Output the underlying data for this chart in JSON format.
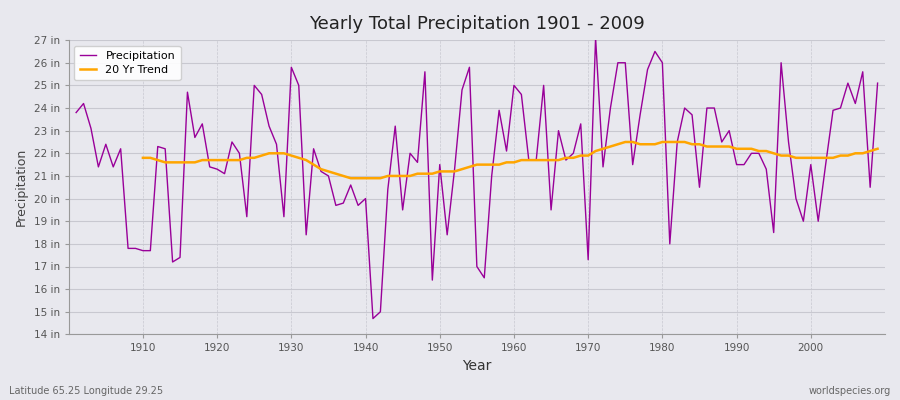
{
  "title": "Yearly Total Precipitation 1901 - 2009",
  "xlabel": "Year",
  "ylabel": "Precipitation",
  "footnote_left": "Latitude 65.25 Longitude 29.25",
  "footnote_right": "worldspecies.org",
  "legend_precipitation": "Precipitation",
  "legend_trend": "20 Yr Trend",
  "precip_color": "#990099",
  "trend_color": "#FFA500",
  "background_color": "#e8e8ee",
  "ylim": [
    14,
    27
  ],
  "yticks": [
    14,
    15,
    16,
    17,
    18,
    19,
    20,
    21,
    22,
    23,
    24,
    25,
    26,
    27
  ],
  "years": [
    1901,
    1902,
    1903,
    1904,
    1905,
    1906,
    1907,
    1908,
    1909,
    1910,
    1911,
    1912,
    1913,
    1914,
    1915,
    1916,
    1917,
    1918,
    1919,
    1920,
    1921,
    1922,
    1923,
    1924,
    1925,
    1926,
    1927,
    1928,
    1929,
    1930,
    1931,
    1932,
    1933,
    1934,
    1935,
    1936,
    1937,
    1938,
    1939,
    1940,
    1941,
    1942,
    1943,
    1944,
    1945,
    1946,
    1947,
    1948,
    1949,
    1950,
    1951,
    1952,
    1953,
    1954,
    1955,
    1956,
    1957,
    1958,
    1959,
    1960,
    1961,
    1962,
    1963,
    1964,
    1965,
    1966,
    1967,
    1968,
    1969,
    1970,
    1971,
    1972,
    1973,
    1974,
    1975,
    1976,
    1977,
    1978,
    1979,
    1980,
    1981,
    1982,
    1983,
    1984,
    1985,
    1986,
    1987,
    1988,
    1989,
    1990,
    1991,
    1992,
    1993,
    1994,
    1995,
    1996,
    1997,
    1998,
    1999,
    2000,
    2001,
    2002,
    2003,
    2004,
    2005,
    2006,
    2007,
    2008,
    2009
  ],
  "precipitation": [
    23.8,
    24.2,
    23.1,
    21.4,
    22.4,
    21.4,
    22.2,
    17.8,
    17.8,
    17.7,
    17.7,
    22.3,
    22.2,
    17.2,
    17.4,
    24.7,
    22.7,
    23.3,
    21.4,
    21.3,
    21.1,
    22.5,
    22.0,
    19.2,
    25.0,
    24.6,
    23.2,
    22.4,
    19.2,
    25.8,
    25.0,
    18.4,
    22.2,
    21.2,
    21.0,
    19.7,
    19.8,
    20.6,
    19.7,
    20.0,
    14.7,
    15.0,
    20.4,
    23.2,
    19.5,
    22.0,
    21.6,
    25.6,
    16.4,
    21.5,
    18.4,
    21.3,
    24.8,
    25.8,
    17.0,
    16.5,
    21.0,
    23.9,
    22.1,
    25.0,
    24.6,
    21.7,
    21.7,
    25.0,
    19.5,
    23.0,
    21.7,
    22.0,
    23.3,
    17.3,
    27.1,
    21.4,
    24.0,
    26.0,
    26.0,
    21.5,
    23.7,
    25.7,
    26.5,
    26.0,
    18.0,
    22.5,
    24.0,
    23.7,
    20.5,
    24.0,
    24.0,
    22.5,
    23.0,
    21.5,
    21.5,
    22.0,
    22.0,
    21.3,
    18.5,
    26.0,
    22.5,
    20.0,
    19.0,
    21.5,
    19.0,
    21.5,
    23.9,
    24.0,
    25.1,
    24.2,
    25.6,
    20.5,
    25.1
  ],
  "trend": [
    null,
    null,
    null,
    null,
    null,
    null,
    null,
    null,
    null,
    21.8,
    21.8,
    21.7,
    21.6,
    21.6,
    21.6,
    21.6,
    21.6,
    21.7,
    21.7,
    21.7,
    21.7,
    21.7,
    21.7,
    21.8,
    21.8,
    21.9,
    22.0,
    22.0,
    22.0,
    21.9,
    21.8,
    21.7,
    21.5,
    21.3,
    21.2,
    21.1,
    21.0,
    20.9,
    20.9,
    20.9,
    20.9,
    20.9,
    21.0,
    21.0,
    21.0,
    21.0,
    21.1,
    21.1,
    21.1,
    21.2,
    21.2,
    21.2,
    21.3,
    21.4,
    21.5,
    21.5,
    21.5,
    21.5,
    21.6,
    21.6,
    21.7,
    21.7,
    21.7,
    21.7,
    21.7,
    21.7,
    21.8,
    21.8,
    21.9,
    21.9,
    22.1,
    22.2,
    22.3,
    22.4,
    22.5,
    22.5,
    22.4,
    22.4,
    22.4,
    22.5,
    22.5,
    22.5,
    22.5,
    22.4,
    22.4,
    22.3,
    22.3,
    22.3,
    22.3,
    22.2,
    22.2,
    22.2,
    22.1,
    22.1,
    22.0,
    21.9,
    21.9,
    21.8,
    21.8,
    21.8,
    21.8,
    21.8,
    21.8,
    21.9,
    21.9,
    22.0,
    22.0,
    22.1,
    22.2
  ]
}
